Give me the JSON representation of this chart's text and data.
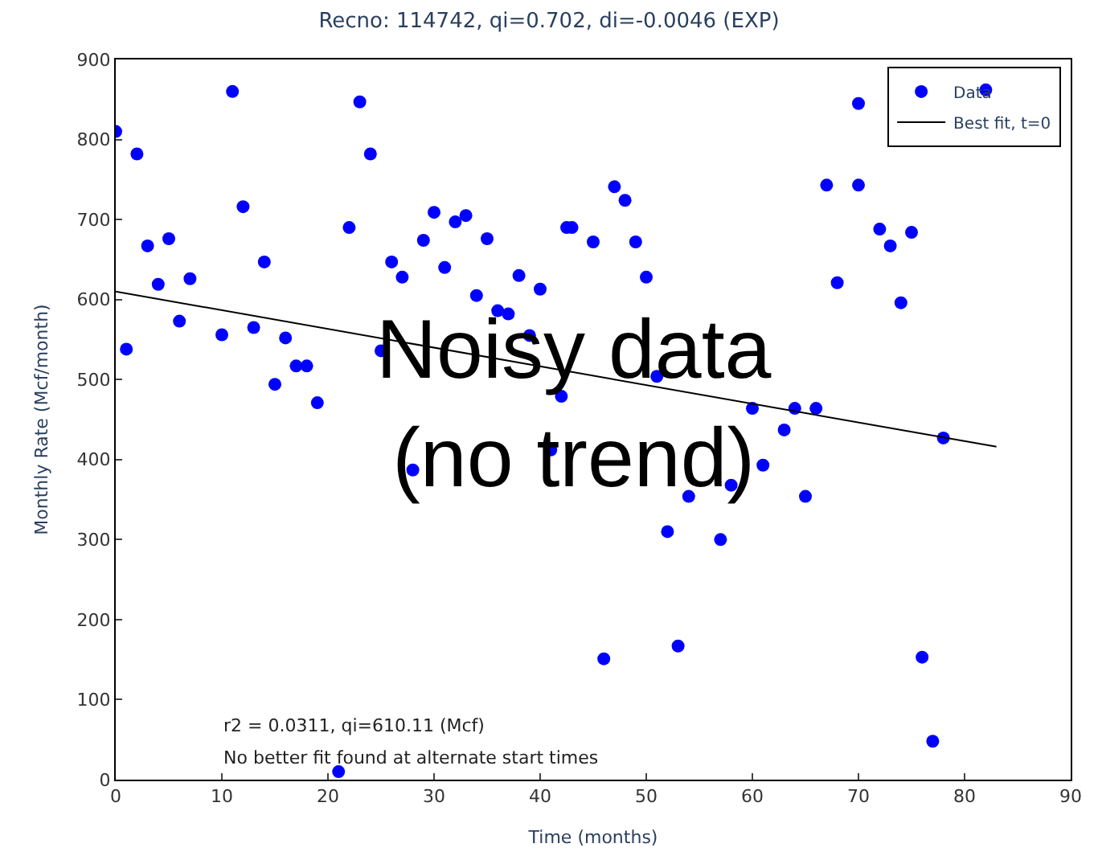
{
  "chart_data": {
    "type": "scatter",
    "title": "Recno: 114742, qi=0.702, di=-0.0046 (EXP)",
    "xlabel": "Time (months)",
    "ylabel": "Monthly Rate (Mcf/month)",
    "xlim": [
      0,
      90
    ],
    "xticks": [
      0,
      10,
      20,
      30,
      40,
      50,
      60,
      70,
      80,
      90
    ],
    "ylim": [
      0,
      900
    ],
    "yticks": [
      0,
      100,
      200,
      300,
      400,
      500,
      600,
      700,
      800,
      900
    ],
    "grid": false,
    "legend": "top right",
    "series": [
      {
        "name": "Data",
        "marker": "circle",
        "color": "#0000ff",
        "x": [
          0,
          1,
          2,
          3,
          4,
          5,
          6,
          7,
          10,
          11,
          12,
          13,
          14,
          15,
          16,
          17,
          18,
          19,
          21,
          22,
          23,
          24,
          25,
          26,
          27,
          28,
          29,
          30,
          31,
          32,
          33,
          34,
          35,
          36,
          37,
          38,
          39,
          40,
          41,
          42,
          42.5,
          43,
          45,
          46,
          47,
          48,
          49,
          50,
          51,
          52,
          53,
          54,
          57,
          58,
          60,
          61,
          63,
          64,
          65,
          66,
          67,
          68,
          70,
          70,
          72,
          73,
          74,
          75,
          76,
          77,
          78,
          82
        ],
        "values": [
          810,
          538,
          782,
          667,
          619,
          676,
          573,
          626,
          556,
          860,
          716,
          565,
          647,
          494,
          552,
          517,
          517,
          471,
          10,
          690,
          847,
          782,
          536,
          647,
          628,
          387,
          674,
          709,
          640,
          697,
          705,
          605,
          676,
          586,
          582,
          630,
          555,
          613,
          412,
          479,
          690,
          690,
          672,
          151,
          741,
          724,
          672,
          628,
          504,
          310,
          167,
          354,
          300,
          368,
          464,
          393,
          437,
          464,
          354,
          464,
          743,
          621,
          743,
          845,
          688,
          667,
          596,
          684,
          153,
          48,
          427,
          862
        ]
      },
      {
        "name": "Best fit, t=0",
        "type": "line",
        "marker": "none",
        "line_style": "solid",
        "color": "#000000",
        "x": [
          0,
          83
        ],
        "values": [
          610,
          416
        ]
      }
    ],
    "annotations": [
      "r2 = 0.0311, qi=610.11 (Mcf)",
      "No better fit found at alternate start times",
      "Noisy data\n(no trend)"
    ]
  }
}
